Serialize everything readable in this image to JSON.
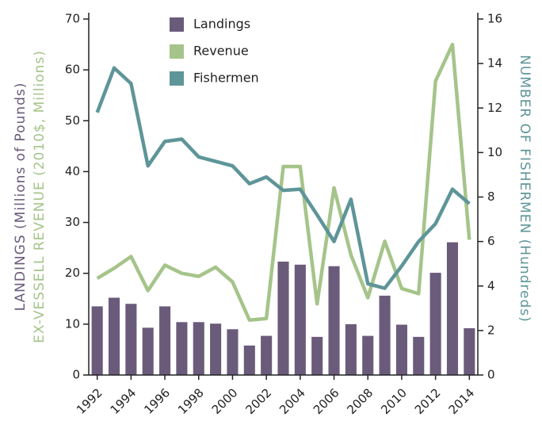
{
  "chart_data": {
    "type": "bar",
    "categories": [
      "1992",
      null,
      "1994",
      null,
      "1996",
      null,
      "1998",
      null,
      "2000",
      null,
      "2002",
      null,
      "2004",
      null,
      "2006",
      null,
      "2008",
      null,
      "2010",
      null,
      "2012",
      null,
      "2014"
    ],
    "series": [
      {
        "name": "Landings",
        "type": "bar",
        "color": "#6b5b7b",
        "values": [
          13.5,
          15.2,
          14,
          9.3,
          13.5,
          10.4,
          10.4,
          10.1,
          9,
          5.8,
          7.7,
          22.3,
          21.7,
          7.5,
          21.4,
          10,
          7.7,
          15.6,
          9.9,
          7.5,
          20.1,
          26.1,
          9.2
        ]
      },
      {
        "name": "Revenue",
        "type": "line",
        "color": "#a5c48a",
        "values": [
          19,
          21,
          23.3,
          16.6,
          21.6,
          20,
          19.4,
          21.2,
          18.3,
          10.8,
          11.1,
          41,
          41,
          14,
          36.8,
          23.6,
          15.2,
          26.3,
          17,
          16,
          57.8,
          65,
          26.6
        ]
      },
      {
        "name": "Fishermen",
        "type": "line",
        "axis": "y2",
        "color": "#5e9598",
        "values": [
          11.8,
          13.8,
          13.1,
          9.4,
          10.5,
          10.6,
          9.8,
          9.6,
          9.4,
          8.6,
          8.9,
          8.3,
          8.35,
          7.2,
          6,
          7.9,
          4.1,
          3.9,
          4.9,
          6,
          6.8,
          8.35,
          7.7
        ]
      }
    ],
    "ylabel": "LANDINGS (Millions of Pounds)",
    "ylabel_secondary": "EX-VESSELL REVENUE (2010$, Millions)",
    "y2label": "NUMBER OF FISHERMEN (Hundreds)",
    "ylim": [
      0,
      70
    ],
    "yticks": [
      0,
      10,
      20,
      30,
      40,
      50,
      60,
      70
    ],
    "y2lim": [
      0,
      16
    ],
    "y2ticks": [
      0,
      2,
      4,
      6,
      8,
      10,
      12,
      14,
      16
    ],
    "legend": "upper left"
  }
}
